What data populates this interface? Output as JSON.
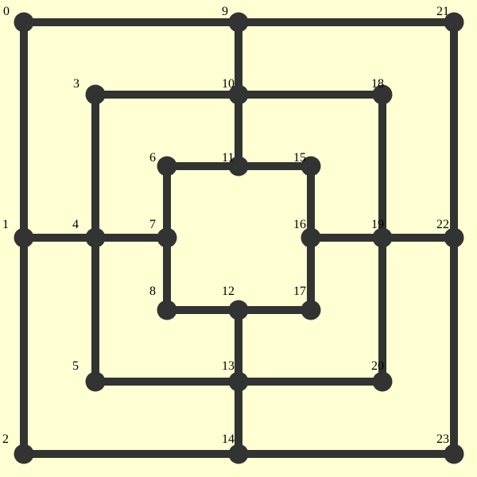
{
  "board": {
    "background_color": "#ffffd4",
    "line_color": "#333333",
    "point_color": "#333333",
    "label_color": "#000000",
    "points": [
      {
        "id": "0",
        "label": "0"
      },
      {
        "id": "1",
        "label": "1"
      },
      {
        "id": "2",
        "label": "2"
      },
      {
        "id": "3",
        "label": "3"
      },
      {
        "id": "4",
        "label": "4"
      },
      {
        "id": "5",
        "label": "5"
      },
      {
        "id": "6",
        "label": "6"
      },
      {
        "id": "7",
        "label": "7"
      },
      {
        "id": "8",
        "label": "8"
      },
      {
        "id": "9",
        "label": "9"
      },
      {
        "id": "10",
        "label": "10"
      },
      {
        "id": "11",
        "label": "11"
      },
      {
        "id": "12",
        "label": "12"
      },
      {
        "id": "13",
        "label": "13"
      },
      {
        "id": "14",
        "label": "14"
      },
      {
        "id": "15",
        "label": "15"
      },
      {
        "id": "16",
        "label": "16"
      },
      {
        "id": "17",
        "label": "17"
      },
      {
        "id": "18",
        "label": "18"
      },
      {
        "id": "19",
        "label": "19"
      },
      {
        "id": "20",
        "label": "20"
      },
      {
        "id": "21",
        "label": "21"
      },
      {
        "id": "22",
        "label": "22"
      },
      {
        "id": "23",
        "label": "23"
      }
    ],
    "connections": [
      [
        "0",
        "9"
      ],
      [
        "9",
        "21"
      ],
      [
        "21",
        "22"
      ],
      [
        "22",
        "23"
      ],
      [
        "23",
        "14"
      ],
      [
        "14",
        "2"
      ],
      [
        "2",
        "1"
      ],
      [
        "1",
        "0"
      ],
      [
        "3",
        "10"
      ],
      [
        "10",
        "18"
      ],
      [
        "18",
        "19"
      ],
      [
        "19",
        "20"
      ],
      [
        "20",
        "13"
      ],
      [
        "13",
        "5"
      ],
      [
        "5",
        "4"
      ],
      [
        "4",
        "3"
      ],
      [
        "6",
        "11"
      ],
      [
        "11",
        "15"
      ],
      [
        "15",
        "16"
      ],
      [
        "16",
        "17"
      ],
      [
        "17",
        "12"
      ],
      [
        "12",
        "8"
      ],
      [
        "8",
        "7"
      ],
      [
        "7",
        "6"
      ],
      [
        "9",
        "10"
      ],
      [
        "10",
        "11"
      ],
      [
        "1",
        "4"
      ],
      [
        "4",
        "7"
      ],
      [
        "16",
        "19"
      ],
      [
        "19",
        "22"
      ],
      [
        "12",
        "13"
      ],
      [
        "13",
        "14"
      ]
    ]
  }
}
